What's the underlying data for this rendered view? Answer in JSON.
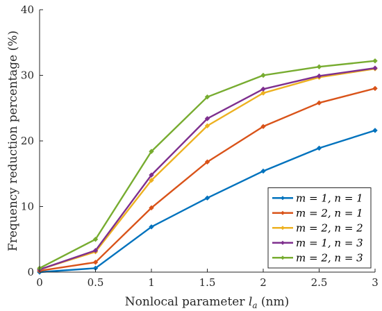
{
  "chart_data": {
    "type": "line",
    "title": "",
    "xlabel": "Nonlocal parameter l_a (nm)",
    "xlabel_parts": {
      "before": "Nonlocal parameter ",
      "symbol": "l",
      "subscript": "a",
      "after": " (nm)"
    },
    "ylabel": "Frequency reduction percentage (%)",
    "xlim": [
      0,
      3
    ],
    "ylim": [
      0,
      40
    ],
    "xticks": [
      0,
      0.5,
      1,
      1.5,
      2,
      2.5,
      3
    ],
    "xtick_labels": [
      "0",
      "0.5",
      "1",
      "1.5",
      "2",
      "2.5",
      "3"
    ],
    "yticks": [
      0,
      10,
      20,
      30,
      40
    ],
    "ytick_labels": [
      "0",
      "10",
      "20",
      "30",
      "40"
    ],
    "grid": false,
    "legend_position": "bottom-right",
    "x": [
      0,
      0.5,
      1,
      1.5,
      2,
      2.5,
      3
    ],
    "series": [
      {
        "name": "m = 1, n = 1",
        "color": "#0072BD",
        "values": [
          0.0,
          0.6,
          6.9,
          11.3,
          15.4,
          18.9,
          21.6
        ]
      },
      {
        "name": "m = 2, n = 1",
        "color": "#D95319",
        "values": [
          0.2,
          1.5,
          9.8,
          16.8,
          22.2,
          25.8,
          28.0
        ]
      },
      {
        "name": "m = 2, n = 2",
        "color": "#EDB120",
        "values": [
          0.4,
          3.1,
          14.0,
          22.3,
          27.3,
          29.7,
          31.0
        ]
      },
      {
        "name": "m = 1, n = 3",
        "color": "#7E2F8E",
        "values": [
          0.4,
          3.3,
          14.8,
          23.4,
          27.9,
          29.9,
          31.1
        ]
      },
      {
        "name": "m = 2, n = 3",
        "color": "#77AC30",
        "values": [
          0.6,
          5.0,
          18.4,
          26.7,
          30.0,
          31.3,
          32.2
        ]
      }
    ]
  }
}
